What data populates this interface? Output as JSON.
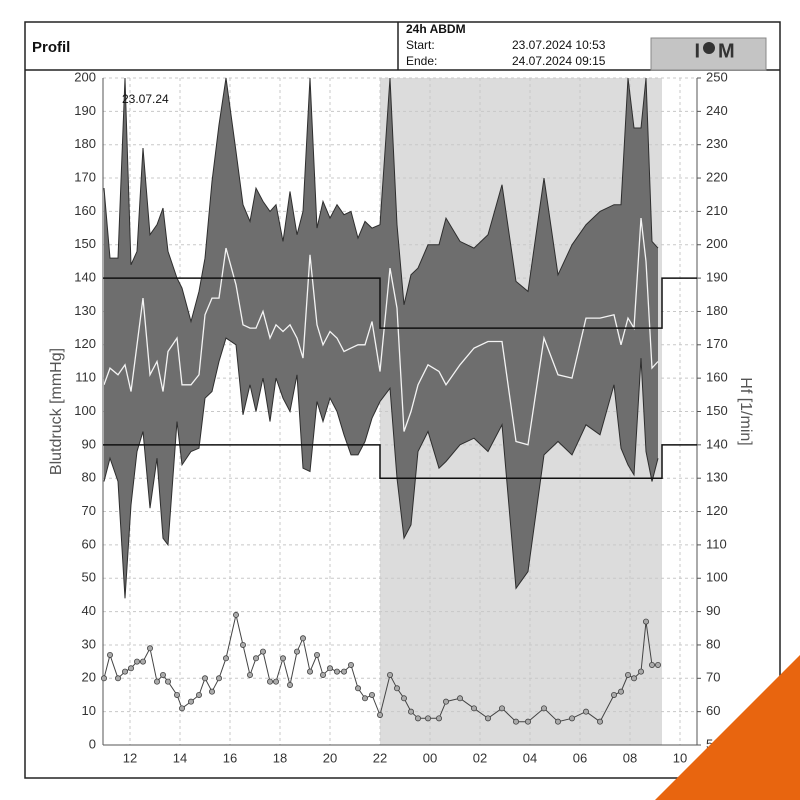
{
  "header": {
    "title": "Profil",
    "report": "24h ABDM",
    "start_label": "Start:",
    "start": "23.07.2024 10:53",
    "end_label": "Ende:",
    "end": "24.07.2024 09:15",
    "logo": [
      "I",
      "M"
    ]
  },
  "chart_data": {
    "type": "line",
    "annotation": "23.07.24",
    "ylabel": "Blutdruck [mmHg]",
    "y2label": "Hf [1/min]",
    "xlim": [
      10.92,
      34.68
    ],
    "ylim": [
      0,
      200
    ],
    "y2lim": [
      50,
      250
    ],
    "xticks": [
      12,
      14,
      16,
      18,
      20,
      22,
      {
        "value": 24,
        "label": "00"
      },
      {
        "value": 26,
        "label": "02"
      },
      {
        "value": 28,
        "label": "04"
      },
      {
        "value": 30,
        "label": "06"
      },
      {
        "value": 32,
        "label": "08"
      },
      {
        "value": 34,
        "label": "10"
      }
    ],
    "yticks": [
      0,
      10,
      20,
      30,
      40,
      50,
      60,
      70,
      80,
      90,
      100,
      110,
      120,
      130,
      140,
      150,
      160,
      170,
      180,
      190,
      200
    ],
    "y2ticks": [
      50,
      60,
      70,
      80,
      90,
      100,
      110,
      120,
      130,
      140,
      150,
      160,
      170,
      180,
      190,
      200,
      210,
      220,
      230,
      240,
      250
    ],
    "grid": true,
    "night": [
      22,
      33.28
    ],
    "day_limits": [
      140,
      90
    ],
    "night_limits": [
      125,
      80
    ],
    "x": [
      10.96,
      11.2,
      11.52,
      11.8,
      12.04,
      12.28,
      12.52,
      12.8,
      13.08,
      13.32,
      13.52,
      13.88,
      14.08,
      14.44,
      14.76,
      15.0,
      15.28,
      15.56,
      15.84,
      16.24,
      16.52,
      16.8,
      17.04,
      17.32,
      17.6,
      17.84,
      18.12,
      18.4,
      18.68,
      18.92,
      19.2,
      19.48,
      19.72,
      20.0,
      20.28,
      20.56,
      20.84,
      21.12,
      21.4,
      21.68,
      22.0,
      22.4,
      22.68,
      22.96,
      23.24,
      23.52,
      23.92,
      24.36,
      24.64,
      25.2,
      25.76,
      26.32,
      26.88,
      27.44,
      27.92,
      28.56,
      29.12,
      29.68,
      30.24,
      30.8,
      31.36,
      31.64,
      31.92,
      32.16,
      32.44,
      32.64,
      32.88,
      33.12
    ],
    "series": [
      {
        "color": "#2e2e2e",
        "values": [
          167,
          146,
          146,
          200,
          144,
          148,
          179,
          153,
          156,
          161,
          148,
          140,
          137,
          127,
          136,
          146,
          169,
          186,
          200,
          178,
          162,
          157,
          167,
          163,
          160,
          162,
          151,
          166,
          153,
          160,
          200,
          155,
          163,
          158,
          162,
          159,
          160,
          152,
          157,
          155,
          156,
          200,
          156,
          132,
          141,
          143,
          150,
          150,
          158,
          151,
          149,
          153,
          168,
          139,
          136,
          170,
          141,
          150,
          156,
          160,
          162,
          162,
          200,
          185,
          185,
          200,
          151,
          149
        ]
      },
      {
        "color": "#2e2e2e",
        "values": [
          79,
          86,
          79,
          44,
          72,
          88,
          94,
          71,
          86,
          62,
          60,
          97,
          84,
          88,
          89,
          104,
          106,
          115,
          122,
          120,
          99,
          108,
          100,
          110,
          97,
          110,
          104,
          100,
          111,
          83,
          82,
          103,
          97,
          104,
          100,
          93,
          87,
          87,
          91,
          98,
          103,
          107,
          80,
          62,
          66,
          88,
          94,
          83,
          85,
          90,
          92,
          88,
          96,
          47,
          52,
          87,
          91,
          87,
          96,
          93,
          108,
          89,
          84,
          81,
          116,
          88,
          79,
          86
        ]
      },
      {
        "color": "#f4f4f4",
        "values": [
          108,
          113,
          111,
          114,
          106,
          120,
          134,
          111,
          115,
          106,
          118,
          122,
          108,
          108,
          111,
          129,
          134,
          134,
          149,
          138,
          126,
          125,
          125,
          130,
          122,
          126,
          124,
          126,
          122,
          116,
          147,
          126,
          120,
          124,
          122,
          118,
          119,
          120,
          120,
          127,
          112,
          143,
          131,
          94,
          100,
          108,
          114,
          112,
          108,
          114,
          119,
          121,
          121,
          91,
          90,
          122,
          111,
          110,
          128,
          128,
          129,
          120,
          128,
          125,
          158,
          145,
          113,
          115
        ]
      },
      {
        "color": "#444444",
        "axis": "y2",
        "values": [
          70,
          77,
          70,
          72,
          73,
          75,
          75,
          79,
          69,
          71,
          69,
          65,
          61,
          63,
          65,
          70,
          66,
          70,
          76,
          89,
          80,
          71,
          76,
          78,
          69,
          69,
          76,
          68,
          78,
          82,
          72,
          77,
          71,
          73,
          72,
          72,
          74,
          67,
          64,
          65,
          59,
          71,
          67,
          64,
          60,
          58,
          58,
          58,
          63,
          64,
          61,
          58,
          61,
          57,
          57,
          61,
          57,
          58,
          60,
          57,
          65,
          66,
          71,
          70,
          72,
          87,
          74,
          74
        ]
      }
    ]
  }
}
